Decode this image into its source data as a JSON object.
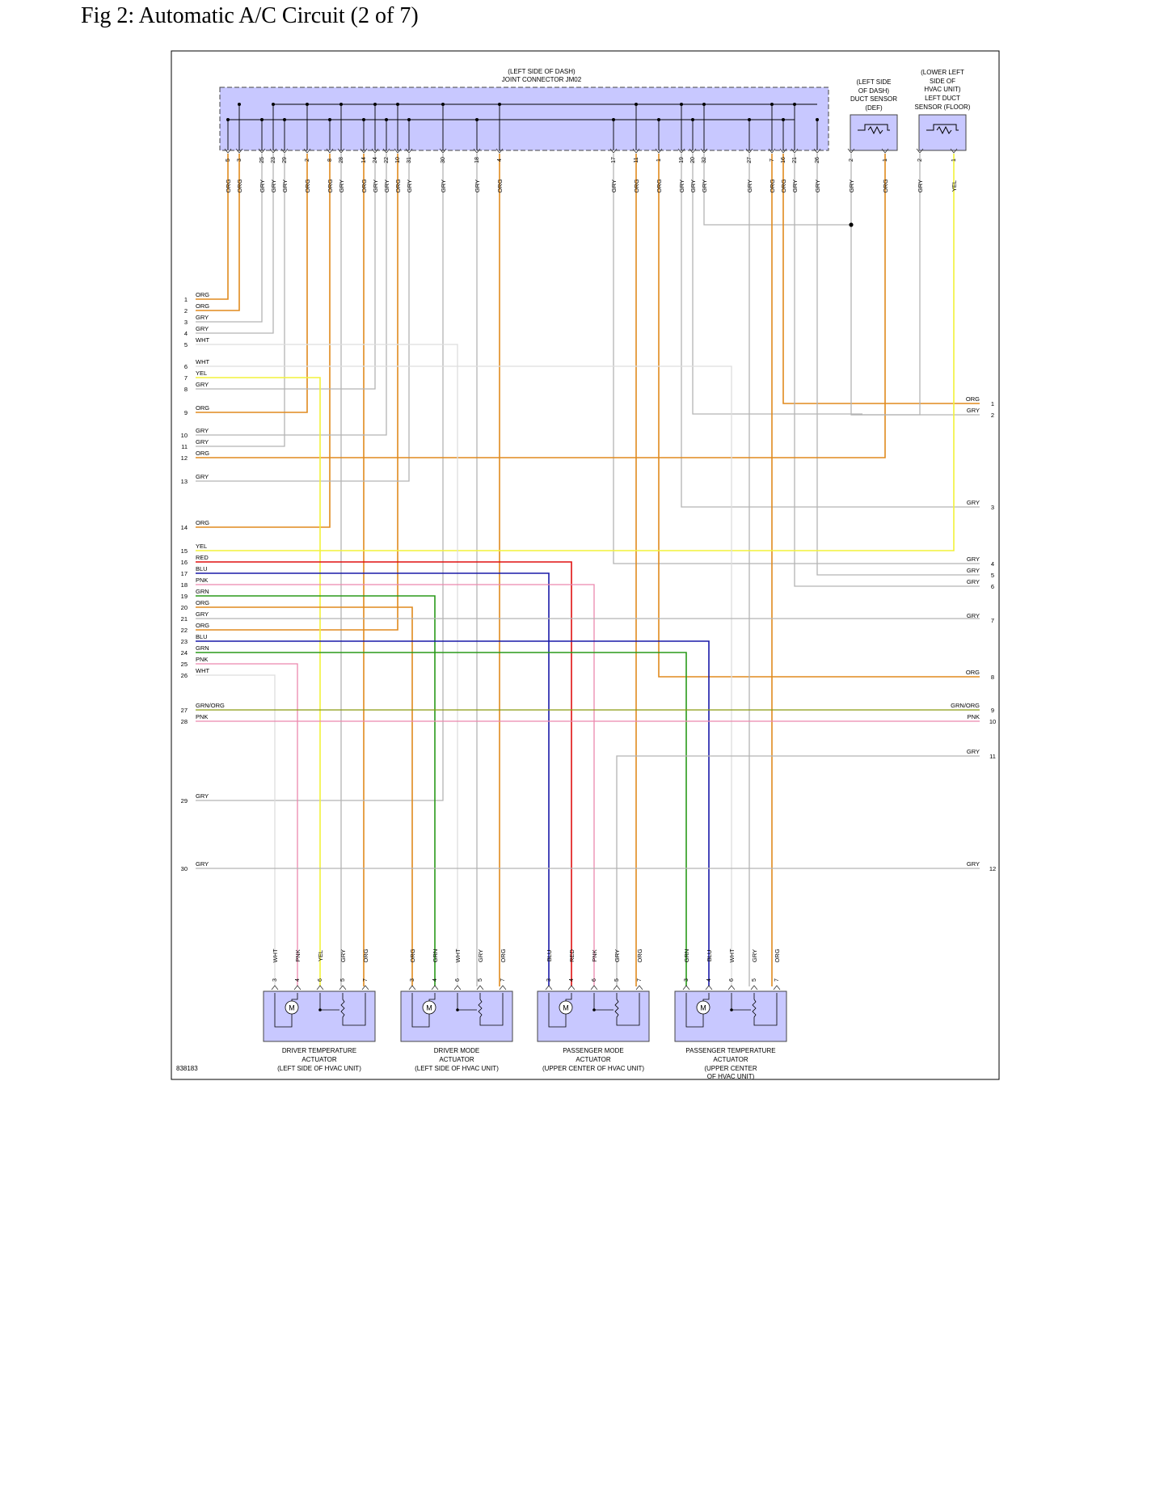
{
  "page": {
    "title": "Fig 2: Automatic A/C Circuit (2 of 7)",
    "code": "838183"
  },
  "colors": {
    "ORG": "#e08a1e",
    "GRY": "#b4b4b4",
    "WHT": "#dddddd",
    "YEL": "#f2f23a",
    "RED": "#e01010",
    "BLU": "#1a1aa8",
    "PNK": "#ec88ad",
    "GRN": "#2a9a1a",
    "GRN/ORG": "#8a9a10",
    "connector_fill": "#c8c8ff"
  },
  "connectors": {
    "jm02": {
      "label1": "(LEFT SIDE OF DASH)",
      "label2": "JOINT CONNECTOR JM02"
    },
    "def_sensor": {
      "labels": [
        "(LEFT SIDE",
        "OF DASH)",
        "DUCT SENSOR",
        "(DEF)"
      ]
    },
    "floor_sensor": {
      "labels": [
        "(LOWER LEFT",
        "SIDE OF",
        "HVAC UNIT)",
        "LEFT DUCT",
        "SENSOR (FLOOR)"
      ]
    }
  },
  "top_pins": [
    {
      "pin": "5",
      "color": "ORG"
    },
    {
      "pin": "3",
      "color": "ORG"
    },
    {
      "pin": "25",
      "color": "GRY"
    },
    {
      "pin": "23",
      "color": "GRY"
    },
    {
      "pin": "29",
      "color": "GRY"
    },
    {
      "pin": "2",
      "color": "ORG"
    },
    {
      "pin": "8",
      "color": "ORG"
    },
    {
      "pin": "28",
      "color": "GRY"
    },
    {
      "pin": "14",
      "color": "ORG"
    },
    {
      "pin": "24",
      "color": "GRY"
    },
    {
      "pin": "22",
      "color": "GRY"
    },
    {
      "pin": "10",
      "color": "ORG"
    },
    {
      "pin": "31",
      "color": "GRY"
    },
    {
      "pin": "30",
      "color": "GRY"
    },
    {
      "pin": "18",
      "color": "GRY"
    },
    {
      "pin": "4",
      "color": "ORG"
    },
    {
      "pin": "17",
      "color": "GRY"
    },
    {
      "pin": "11",
      "color": "ORG"
    },
    {
      "pin": "1",
      "color": "ORG"
    },
    {
      "pin": "19",
      "color": "GRY"
    },
    {
      "pin": "20",
      "color": "GRY"
    },
    {
      "pin": "32",
      "color": "GRY"
    },
    {
      "pin": "27",
      "color": "GRY"
    },
    {
      "pin": "7",
      "color": "ORG"
    },
    {
      "pin": "16",
      "color": "ORG"
    },
    {
      "pin": "21",
      "color": "GRY"
    },
    {
      "pin": "26",
      "color": "GRY"
    },
    {
      "pin": "2",
      "color": "GRY"
    },
    {
      "pin": "1",
      "color": "ORG"
    },
    {
      "pin": "2",
      "color": "GRY"
    },
    {
      "pin": "1",
      "color": "YEL"
    }
  ],
  "left_terminals": [
    {
      "num": "1",
      "color": "ORG"
    },
    {
      "num": "2",
      "color": "ORG"
    },
    {
      "num": "3",
      "color": "GRY"
    },
    {
      "num": "4",
      "color": "GRY"
    },
    {
      "num": "5",
      "color": "WHT"
    },
    {
      "num": "6",
      "color": "WHT"
    },
    {
      "num": "7",
      "color": "YEL"
    },
    {
      "num": "8",
      "color": "GRY"
    },
    {
      "num": "9",
      "color": "ORG"
    },
    {
      "num": "10",
      "color": "GRY"
    },
    {
      "num": "11",
      "color": "GRY"
    },
    {
      "num": "12",
      "color": "ORG"
    },
    {
      "num": "13",
      "color": "GRY"
    },
    {
      "num": "14",
      "color": "ORG"
    },
    {
      "num": "15",
      "color": "YEL"
    },
    {
      "num": "16",
      "color": "RED"
    },
    {
      "num": "17",
      "color": "BLU"
    },
    {
      "num": "18",
      "color": "PNK"
    },
    {
      "num": "19",
      "color": "GRN"
    },
    {
      "num": "20",
      "color": "ORG"
    },
    {
      "num": "21",
      "color": "GRY"
    },
    {
      "num": "22",
      "color": "ORG"
    },
    {
      "num": "23",
      "color": "BLU"
    },
    {
      "num": "24",
      "color": "GRN"
    },
    {
      "num": "25",
      "color": "PNK"
    },
    {
      "num": "26",
      "color": "WHT"
    },
    {
      "num": "27",
      "color": "GRN/ORG"
    },
    {
      "num": "28",
      "color": "PNK"
    },
    {
      "num": "29",
      "color": "GRY"
    },
    {
      "num": "30",
      "color": "GRY"
    }
  ],
  "right_terminals": [
    {
      "num": "1",
      "color": "ORG"
    },
    {
      "num": "2",
      "color": "GRY"
    },
    {
      "num": "3",
      "color": "GRY"
    },
    {
      "num": "4",
      "color": "GRY"
    },
    {
      "num": "5",
      "color": "GRY"
    },
    {
      "num": "6",
      "color": "GRY"
    },
    {
      "num": "7",
      "color": "GRY"
    },
    {
      "num": "8",
      "color": "ORG"
    },
    {
      "num": "9",
      "color": "GRN/ORG"
    },
    {
      "num": "10",
      "color": "PNK"
    },
    {
      "num": "11",
      "color": "GRY"
    },
    {
      "num": "12",
      "color": "GRY"
    }
  ],
  "actuators": [
    {
      "labels": [
        "DRIVER TEMPERATURE",
        "ACTUATOR",
        "(LEFT SIDE OF HVAC UNIT)"
      ],
      "pins": [
        {
          "pin": "3",
          "color": "WHT"
        },
        {
          "pin": "4",
          "color": "PNK"
        },
        {
          "pin": "6",
          "color": "YEL"
        },
        {
          "pin": "5",
          "color": "GRY"
        },
        {
          "pin": "7",
          "color": "ORG"
        }
      ]
    },
    {
      "labels": [
        "DRIVER MODE",
        "ACTUATOR",
        "(LEFT SIDE OF HVAC UNIT)"
      ],
      "pins": [
        {
          "pin": "3",
          "color": "ORG"
        },
        {
          "pin": "4",
          "color": "GRN"
        },
        {
          "pin": "6",
          "color": "WHT"
        },
        {
          "pin": "5",
          "color": "GRY"
        },
        {
          "pin": "7",
          "color": "ORG"
        }
      ]
    },
    {
      "labels": [
        "PASSENGER MODE",
        "ACTUATOR",
        "(UPPER CENTER OF HVAC UNIT)"
      ],
      "pins": [
        {
          "pin": "3",
          "color": "BLU"
        },
        {
          "pin": "4",
          "color": "RED"
        },
        {
          "pin": "6",
          "color": "PNK"
        },
        {
          "pin": "5",
          "color": "GRY"
        },
        {
          "pin": "7",
          "color": "ORG"
        }
      ]
    },
    {
      "labels": [
        "PASSENGER TEMPERATURE",
        "ACTUATOR",
        "(UPPER CENTER",
        "OF HVAC UNIT)"
      ],
      "pins": [
        {
          "pin": "3",
          "color": "GRN"
        },
        {
          "pin": "4",
          "color": "BLU"
        },
        {
          "pin": "6",
          "color": "WHT"
        },
        {
          "pin": "5",
          "color": "GRY"
        },
        {
          "pin": "7",
          "color": "ORG"
        }
      ]
    }
  ],
  "motor_symbol": "M"
}
